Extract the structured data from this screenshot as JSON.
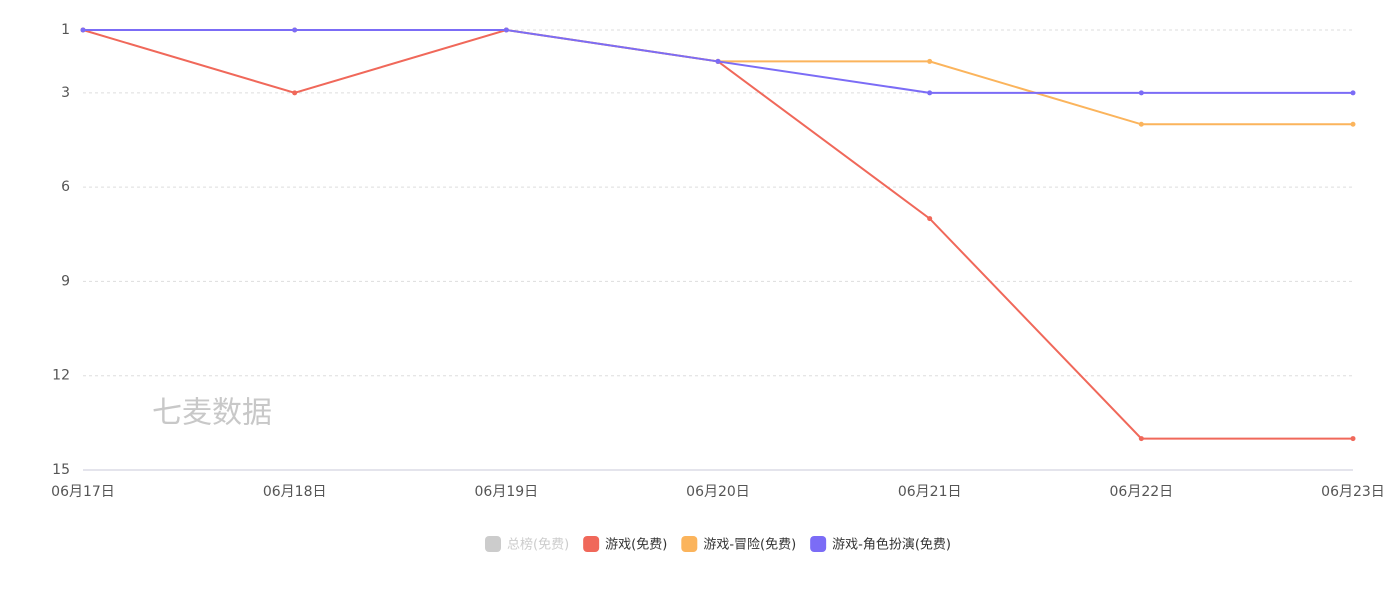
{
  "chart_data": {
    "type": "line",
    "categories": [
      "06月17日",
      "06月18日",
      "06月19日",
      "06月20日",
      "06月21日",
      "06月22日",
      "06月23日"
    ],
    "series": [
      {
        "name": "总榜(免费)",
        "color": "#cccccc",
        "values": [
          null,
          null,
          null,
          null,
          null,
          null,
          null
        ],
        "hidden": true
      },
      {
        "name": "游戏(免费)",
        "color": "#f0685a",
        "values": [
          1,
          3,
          1,
          2,
          7,
          14,
          14
        ]
      },
      {
        "name": "游戏-冒险(免费)",
        "color": "#fbb45c",
        "values": [
          1,
          1,
          1,
          2,
          2,
          4,
          4
        ]
      },
      {
        "name": "游戏-角色扮演(免费)",
        "color": "#7b6cf6",
        "values": [
          1,
          1,
          1,
          2,
          3,
          3,
          3
        ]
      }
    ],
    "ylim": [
      1,
      15
    ],
    "yticks": [
      1,
      3,
      6,
      9,
      12,
      15
    ],
    "y_inverted": true,
    "grid": true,
    "legend": "bottom",
    "watermark": "七麦数据"
  }
}
